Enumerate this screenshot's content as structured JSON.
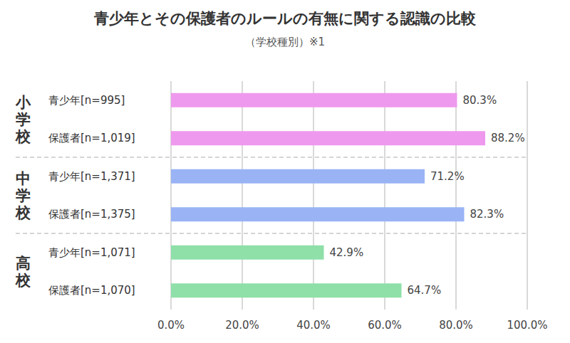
{
  "chart_data": {
    "type": "bar",
    "orientation": "horizontal",
    "title": "青少年とその保護者のルールの有無に関する認識の比較",
    "subtitle": "（学校種別）※1",
    "categories": [
      "青少年[n=995]",
      "保護者[n=1,019]",
      "青少年[n=1,371]",
      "保護者[n=1,375]",
      "青少年[n=1,071]",
      "保護者[n=1,070]"
    ],
    "group_labels": [
      "小学校",
      "小学校",
      "中学校",
      "中学校",
      "高校",
      "高校"
    ],
    "values": [
      80.3,
      88.2,
      71.2,
      82.3,
      42.9,
      64.7
    ],
    "value_labels": [
      "80.3%",
      "88.2%",
      "71.2%",
      "82.3%",
      "42.9%",
      "64.7%"
    ],
    "colors": [
      "#ee99ee",
      "#ee99ee",
      "#99b3f5",
      "#99b3f5",
      "#8ee0a8",
      "#8ee0a8"
    ],
    "xlim": [
      0,
      100
    ],
    "xticks": [
      {
        "value": 0,
        "label": "0.0%"
      },
      {
        "value": 20,
        "label": "20.0%"
      },
      {
        "value": 40,
        "label": "40.0%"
      },
      {
        "value": 60,
        "label": "60.0%"
      },
      {
        "value": 80,
        "label": "80.0%"
      },
      {
        "value": 100,
        "label": "100.0%"
      }
    ],
    "grid": true,
    "data_labels": true
  }
}
